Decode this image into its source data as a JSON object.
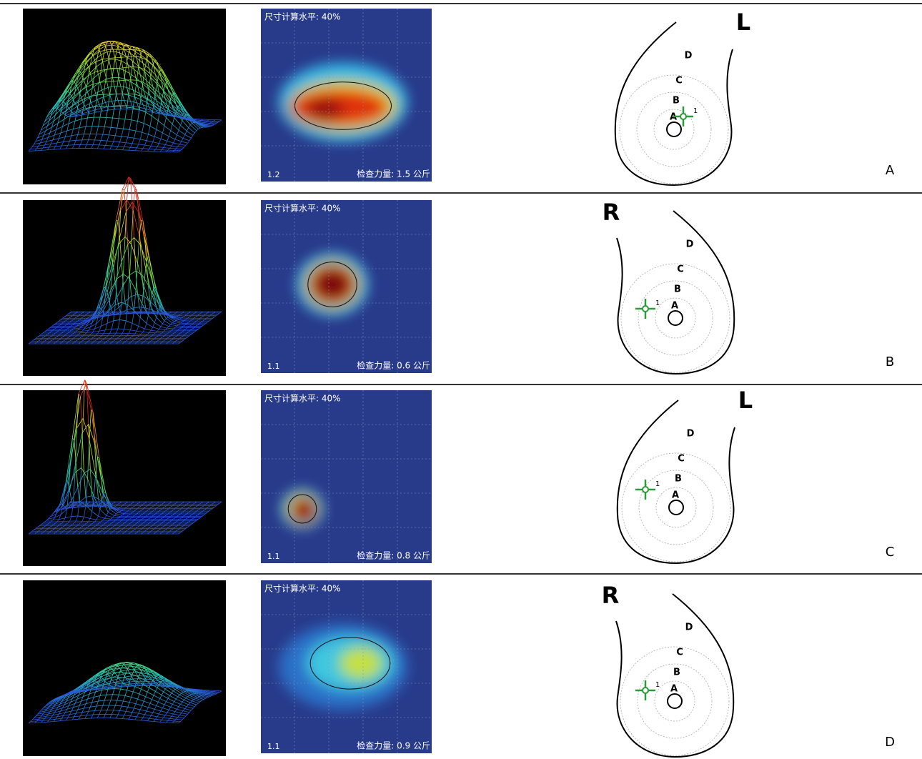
{
  "panels": [
    {
      "heatmap": {
        "title": "尺寸计算水平: 40%",
        "scale": "1.2",
        "force": "检查力量: 1.5 公斤"
      },
      "diagram": {
        "side": "L",
        "zones": [
          "D",
          "C",
          "B",
          "A"
        ],
        "marker": "1"
      },
      "label": "A"
    },
    {
      "heatmap": {
        "title": "尺寸计算水平: 40%",
        "scale": "1.1",
        "force": "检查力量: 0.6 公斤"
      },
      "diagram": {
        "side": "R",
        "zones": [
          "D",
          "C",
          "B",
          "A"
        ],
        "marker": "1"
      },
      "label": "B"
    },
    {
      "heatmap": {
        "title": "尺寸计算水平: 40%",
        "scale": "1.1",
        "force": "检查力量: 0.8 公斤"
      },
      "diagram": {
        "side": "L",
        "zones": [
          "D",
          "C",
          "B",
          "A"
        ],
        "marker": "1"
      },
      "label": "C"
    },
    {
      "heatmap": {
        "title": "尺寸计算水平: 40%",
        "scale": "1.1",
        "force": "检查力量: 0.9 公斤"
      },
      "diagram": {
        "side": "R",
        "zones": [
          "D",
          "C",
          "B",
          "A"
        ],
        "marker": "1"
      },
      "label": "D"
    }
  ]
}
